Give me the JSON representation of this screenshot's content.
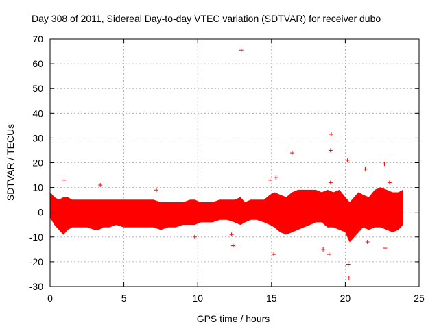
{
  "chart_data": {
    "type": "scatter",
    "title": "Day 308 of 2011, Sidereal Day-to-day VTEC variation (SDTVAR) for receiver dubo",
    "xlabel": "GPS time / hours",
    "ylabel": "SDTVAR / TECUs",
    "xlim": [
      0,
      25
    ],
    "ylim": [
      -30,
      70
    ],
    "xticks": [
      0,
      5,
      10,
      15,
      20,
      25
    ],
    "yticks": [
      -30,
      -20,
      -10,
      0,
      10,
      20,
      30,
      40,
      50,
      60,
      70
    ],
    "xtick_labels": [
      "0",
      "5",
      "10",
      "15",
      "20",
      "25"
    ],
    "ytick_labels": [
      "-30",
      "-20",
      "-10",
      "0",
      "10",
      "20",
      "30",
      "40",
      "50",
      "60",
      "70"
    ],
    "grid": true,
    "marker": "+",
    "color": "#ff0000",
    "series": [
      {
        "name": "SDTVAR",
        "envelope": {
          "x": [
            0.0,
            0.3,
            0.6,
            0.9,
            1.2,
            1.5,
            2.0,
            2.5,
            3.0,
            3.3,
            3.6,
            4.0,
            4.5,
            5.0,
            5.5,
            6.0,
            6.5,
            7.0,
            7.5,
            8.0,
            8.5,
            9.0,
            9.5,
            9.8,
            10.2,
            10.6,
            11.0,
            11.5,
            12.0,
            12.5,
            12.9,
            13.2,
            13.6,
            14.0,
            14.5,
            14.9,
            15.2,
            15.6,
            16.0,
            16.4,
            16.8,
            17.2,
            17.6,
            18.0,
            18.4,
            18.8,
            19.2,
            19.6,
            20.0,
            20.3,
            20.6,
            20.9,
            21.2,
            21.6,
            22.0,
            22.4,
            22.8,
            23.2,
            23.6,
            23.9
          ],
          "upper": [
            8,
            6,
            5,
            6,
            6,
            5,
            5,
            5,
            5,
            5,
            5,
            5,
            5,
            5,
            5,
            5,
            5,
            5,
            4,
            4,
            4,
            4,
            5,
            5,
            4,
            4,
            4,
            5,
            5,
            5,
            6,
            4,
            5,
            5,
            5,
            7,
            8,
            7,
            6,
            8,
            9,
            9,
            9,
            9,
            8,
            9,
            8,
            9,
            6,
            4,
            6,
            8,
            7,
            6,
            9,
            10,
            9,
            8,
            8,
            9
          ],
          "lower": [
            -2,
            -5,
            -7,
            -9,
            -7,
            -6,
            -6,
            -6,
            -7,
            -7,
            -6,
            -6,
            -5,
            -6,
            -6,
            -6,
            -6,
            -6,
            -7,
            -6,
            -6,
            -5,
            -5,
            -5,
            -4,
            -4,
            -4,
            -3,
            -3,
            -4,
            -5,
            -4,
            -3,
            -3,
            -4,
            -5,
            -6,
            -8,
            -9,
            -8,
            -7,
            -6,
            -5,
            -4,
            -4,
            -6,
            -6,
            -7,
            -8,
            -12,
            -10,
            -8,
            -6,
            -7,
            -6,
            -6,
            -7,
            -8,
            -7,
            -5
          ]
        },
        "outliers": {
          "x": [
            0.95,
            3.4,
            7.2,
            9.8,
            12.3,
            12.4,
            12.95,
            14.9,
            15.15,
            15.3,
            16.4,
            18.5,
            18.9,
            19.0,
            19.05,
            19.0,
            20.15,
            20.2,
            20.25,
            21.35,
            21.5,
            22.65,
            22.7,
            23.0
          ],
          "y": [
            13,
            11,
            9,
            -10,
            -9,
            -13.5,
            65.5,
            13,
            -17,
            14,
            24,
            -15,
            -17,
            25,
            31.5,
            12,
            21,
            -21,
            -26.5,
            17.5,
            -12,
            19.5,
            -14.5,
            12
          ]
        }
      }
    ]
  }
}
